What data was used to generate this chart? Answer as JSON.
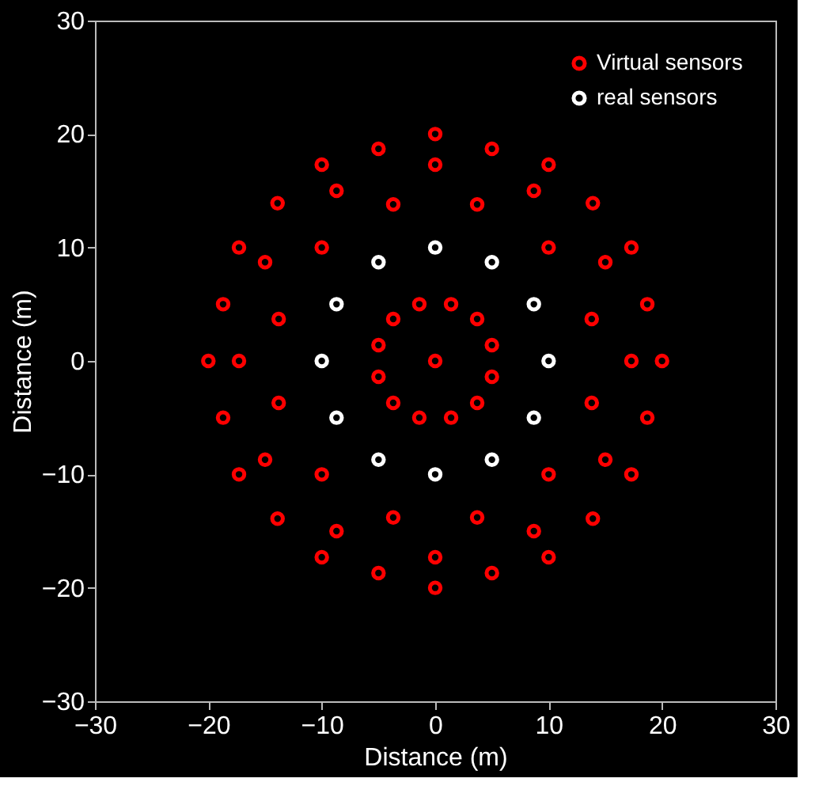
{
  "chart_data": {
    "type": "scatter",
    "xlabel": "Distance (m)",
    "ylabel": "Distance (m)",
    "xlim": [
      -30,
      30
    ],
    "ylim": [
      -30,
      30
    ],
    "xticks": [
      -30,
      -20,
      -10,
      0,
      10,
      20,
      30
    ],
    "yticks": [
      -30,
      -20,
      -10,
      0,
      10,
      20,
      30
    ],
    "grid": false,
    "legend": "top right",
    "marker": "circle",
    "series": [
      {
        "name": "Virtual sensors",
        "color": "#ff0000",
        "x": [
          0,
          5,
          10,
          13.9,
          17.3,
          18.7,
          20,
          18.7,
          17.3,
          13.9,
          10,
          5,
          0,
          -5,
          -10,
          -13.9,
          -17.3,
          -18.7,
          -20,
          -18.7,
          -17.3,
          -13.9,
          -10,
          -5,
          0,
          8.7,
          15,
          17.3,
          15,
          8.7,
          0,
          -8.7,
          -15,
          -17.3,
          -15,
          -8.7,
          3.7,
          10,
          13.8,
          13.8,
          10,
          3.7,
          -3.7,
          -10,
          -13.8,
          -13.8,
          -10,
          -3.7,
          1.4,
          3.7,
          5,
          5,
          3.7,
          1.4,
          -1.4,
          -3.7,
          -5,
          -5,
          -3.7,
          -1.4,
          0
        ],
        "values": [
          20,
          18.7,
          17.3,
          13.9,
          10,
          5,
          0,
          -5,
          -10,
          -13.9,
          -17.3,
          -18.7,
          -20,
          -18.7,
          -17.3,
          -13.9,
          -10,
          -5,
          0,
          5,
          10,
          13.9,
          17.3,
          18.7,
          17.3,
          15,
          8.7,
          0,
          -8.7,
          -15,
          -17.3,
          -15,
          -8.7,
          0,
          8.7,
          15,
          13.8,
          10,
          3.7,
          -3.7,
          -10,
          -13.8,
          -13.8,
          -10,
          -3.7,
          3.7,
          10,
          13.8,
          5,
          3.7,
          1.4,
          -1.4,
          -3.7,
          -5,
          -5,
          -3.7,
          -1.4,
          1.4,
          3.7,
          5,
          0
        ]
      },
      {
        "name": "real sensors",
        "color": "#ffffff",
        "x": [
          0,
          5,
          8.7,
          10,
          8.7,
          5,
          0,
          -5,
          -8.7,
          -10,
          -8.7,
          -5
        ],
        "values": [
          10,
          8.7,
          5,
          0,
          -5,
          -8.7,
          -10,
          -8.7,
          -5,
          0,
          5,
          8.7
        ]
      }
    ]
  }
}
